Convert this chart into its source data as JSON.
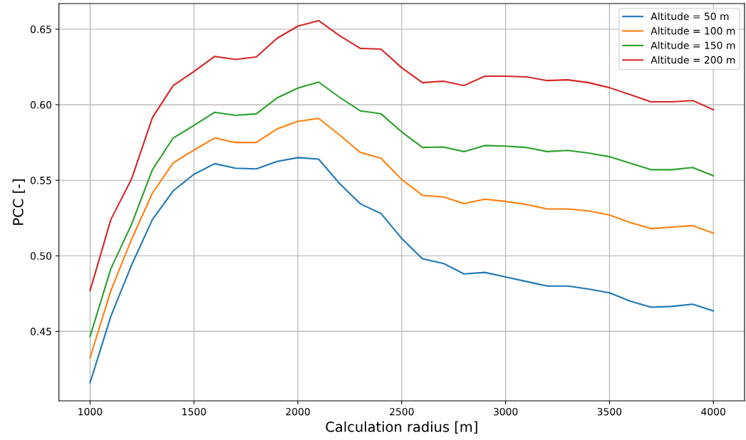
{
  "chart_data": {
    "type": "line",
    "xlabel": "Calculation radius [m]",
    "ylabel": "PCC [-]",
    "x": [
      1000,
      1100,
      1200,
      1300,
      1400,
      1500,
      1600,
      1700,
      1800,
      1900,
      2000,
      2100,
      2200,
      2300,
      2400,
      2500,
      2600,
      2700,
      2800,
      2900,
      3000,
      3100,
      3200,
      3300,
      3400,
      3500,
      3600,
      3700,
      3800,
      3900,
      4000
    ],
    "series": [
      {
        "name": "Altitude = 50 m",
        "color": "#1f77b4",
        "values": [
          0.416,
          0.46,
          0.494,
          0.524,
          0.543,
          0.554,
          0.561,
          0.558,
          0.5575,
          0.5625,
          0.565,
          0.564,
          0.548,
          0.5345,
          0.528,
          0.5115,
          0.498,
          0.495,
          0.488,
          0.489,
          0.486,
          0.483,
          0.48,
          0.48,
          0.478,
          0.4755,
          0.47,
          0.466,
          0.4665,
          0.468,
          0.4635
        ]
      },
      {
        "name": "Altitude = 100 m",
        "color": "#ff7f0e",
        "values": [
          0.4325,
          0.477,
          0.511,
          0.5415,
          0.5615,
          0.57,
          0.578,
          0.575,
          0.575,
          0.584,
          0.589,
          0.591,
          0.58,
          0.5685,
          0.5646,
          0.5505,
          0.54,
          0.539,
          0.5345,
          0.5375,
          0.536,
          0.534,
          0.531,
          0.531,
          0.5297,
          0.527,
          0.522,
          0.518,
          0.519,
          0.52,
          0.515
        ]
      },
      {
        "name": "Altitude = 150 m",
        "color": "#2ca02c",
        "values": [
          0.4467,
          0.4915,
          0.521,
          0.557,
          0.578,
          0.5863,
          0.595,
          0.593,
          0.594,
          0.6045,
          0.611,
          0.615,
          0.605,
          0.596,
          0.594,
          0.582,
          0.5717,
          0.572,
          0.569,
          0.573,
          0.5726,
          0.5717,
          0.569,
          0.5698,
          0.568,
          0.5656,
          0.5613,
          0.557,
          0.557,
          0.5585,
          0.553
        ]
      },
      {
        "name": "Altitude = 200 m",
        "color": "#d62728",
        "values": [
          0.477,
          0.524,
          0.551,
          0.5915,
          0.6127,
          0.622,
          0.632,
          0.63,
          0.6316,
          0.644,
          0.652,
          0.6557,
          0.6458,
          0.6373,
          0.6368,
          0.6245,
          0.6146,
          0.6156,
          0.6127,
          0.6189,
          0.6189,
          0.6184,
          0.616,
          0.6165,
          0.6146,
          0.6113,
          0.6066,
          0.6019,
          0.6019,
          0.6028,
          0.5967
        ]
      }
    ],
    "xlim": [
      850,
      4150
    ],
    "ylim": [
      0.404,
      0.667
    ],
    "xticks": [
      1000,
      1500,
      2000,
      2500,
      3000,
      3500,
      4000
    ],
    "yticks": [
      {
        "value": 0.45,
        "label": "0.45"
      },
      {
        "value": 0.5,
        "label": "0.50"
      },
      {
        "value": 0.55,
        "label": "0.55"
      },
      {
        "value": 0.6,
        "label": "0.60"
      },
      {
        "value": 0.65,
        "label": "0.65"
      }
    ],
    "grid": true,
    "legend": "top right",
    "line_style": "solid",
    "marker": "none"
  }
}
